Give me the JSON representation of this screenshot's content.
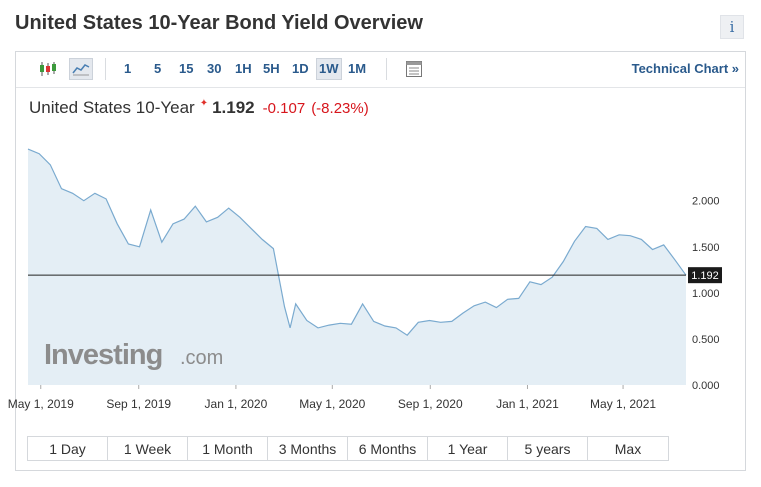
{
  "header": {
    "title": "United States 10-Year Bond Yield Overview",
    "info_label": "i"
  },
  "toolbar": {
    "chart_icons": [
      "candlestick-chart-icon",
      "area-chart-icon"
    ],
    "timeframes": [
      "1",
      "5",
      "15",
      "30",
      "1H",
      "5H",
      "1D",
      "1W",
      "1M"
    ],
    "active_timeframe": "1W",
    "settings_icon": "chart-settings-icon",
    "technical_link": "Technical Chart »"
  },
  "quote": {
    "name": "United States 10-Year",
    "arrow": "✦",
    "last": "1.192",
    "change": "-0.107",
    "change_pct": "(-8.23%)"
  },
  "colors": {
    "accent": "#2a5a8c",
    "negative": "#d7151c",
    "area_fill": "#e4eef5",
    "line": "#7aaacf"
  },
  "watermark": {
    "brand": "Investing",
    "suffix": ".com"
  },
  "ranges": [
    "1 Day",
    "1 Week",
    "1 Month",
    "3 Months",
    "6 Months",
    "1 Year",
    "5 years",
    "Max"
  ],
  "chart_data": {
    "type": "area",
    "title": "United States 10-Year",
    "xlabel": "",
    "ylabel": "",
    "ylim": [
      0,
      2.8
    ],
    "y_ticks": [
      "0.000",
      "0.500",
      "1.000",
      "1.500",
      "2.000"
    ],
    "y_tick_values": [
      0,
      0.5,
      1.0,
      1.5,
      2.0
    ],
    "x_ticks": [
      "May 1, 2019",
      "Sep 1, 2019",
      "Jan 1, 2020",
      "May 1, 2020",
      "Sep 1, 2020",
      "Jan 1, 2021",
      "May 1, 2021"
    ],
    "x_tick_dates": [
      "2019-05-01",
      "2019-09-01",
      "2020-01-01",
      "2020-05-01",
      "2020-09-01",
      "2021-01-01",
      "2021-05-01"
    ],
    "current_value": "1.192",
    "current_value_num": 1.192,
    "grid": false,
    "series": [
      {
        "values": [
          [
            "2019-04-15",
            2.56
          ],
          [
            "2019-04-29",
            2.51
          ],
          [
            "2019-05-13",
            2.39
          ],
          [
            "2019-05-27",
            2.13
          ],
          [
            "2019-06-10",
            2.08
          ],
          [
            "2019-06-24",
            2.0
          ],
          [
            "2019-07-08",
            2.08
          ],
          [
            "2019-07-22",
            2.02
          ],
          [
            "2019-08-05",
            1.75
          ],
          [
            "2019-08-19",
            1.53
          ],
          [
            "2019-09-02",
            1.5
          ],
          [
            "2019-09-16",
            1.9
          ],
          [
            "2019-09-30",
            1.55
          ],
          [
            "2019-10-14",
            1.75
          ],
          [
            "2019-10-28",
            1.8
          ],
          [
            "2019-11-11",
            1.94
          ],
          [
            "2019-11-25",
            1.77
          ],
          [
            "2019-12-09",
            1.82
          ],
          [
            "2019-12-23",
            1.92
          ],
          [
            "2020-01-06",
            1.82
          ],
          [
            "2020-01-20",
            1.7
          ],
          [
            "2020-02-03",
            1.58
          ],
          [
            "2020-02-17",
            1.48
          ],
          [
            "2020-03-02",
            0.85
          ],
          [
            "2020-03-09",
            0.62
          ],
          [
            "2020-03-16",
            0.88
          ],
          [
            "2020-03-30",
            0.7
          ],
          [
            "2020-04-13",
            0.62
          ],
          [
            "2020-04-27",
            0.65
          ],
          [
            "2020-05-11",
            0.67
          ],
          [
            "2020-05-25",
            0.66
          ],
          [
            "2020-06-08",
            0.88
          ],
          [
            "2020-06-22",
            0.69
          ],
          [
            "2020-07-06",
            0.64
          ],
          [
            "2020-07-20",
            0.62
          ],
          [
            "2020-08-03",
            0.54
          ],
          [
            "2020-08-17",
            0.68
          ],
          [
            "2020-08-31",
            0.7
          ],
          [
            "2020-09-14",
            0.68
          ],
          [
            "2020-09-28",
            0.69
          ],
          [
            "2020-10-12",
            0.78
          ],
          [
            "2020-10-26",
            0.86
          ],
          [
            "2020-11-09",
            0.9
          ],
          [
            "2020-11-23",
            0.84
          ],
          [
            "2020-12-07",
            0.93
          ],
          [
            "2020-12-21",
            0.94
          ],
          [
            "2021-01-04",
            1.12
          ],
          [
            "2021-01-18",
            1.09
          ],
          [
            "2021-02-01",
            1.17
          ],
          [
            "2021-02-15",
            1.34
          ],
          [
            "2021-03-01",
            1.56
          ],
          [
            "2021-03-15",
            1.72
          ],
          [
            "2021-03-29",
            1.7
          ],
          [
            "2021-04-12",
            1.58
          ],
          [
            "2021-04-26",
            1.63
          ],
          [
            "2021-05-10",
            1.62
          ],
          [
            "2021-05-24",
            1.58
          ],
          [
            "2021-06-07",
            1.47
          ],
          [
            "2021-06-21",
            1.52
          ],
          [
            "2021-07-05",
            1.36
          ],
          [
            "2021-07-19",
            1.192
          ]
        ]
      }
    ]
  }
}
